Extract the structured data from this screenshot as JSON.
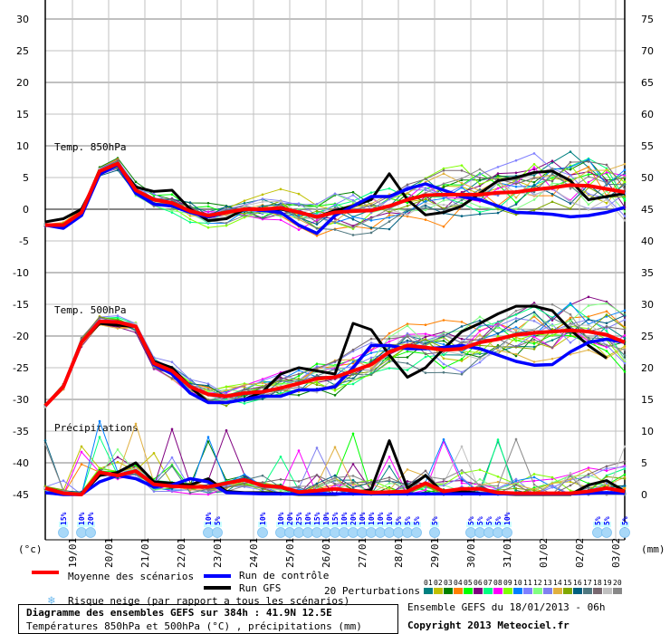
{
  "chart_data": {
    "type": "line",
    "title": "Diagramme des ensembles GEFS sur 384h : 41.9N 12.5E",
    "subtitle": "Températures 850hPa et 500hPa (°C) , précipitations (mm)",
    "run_info": "Ensemble GEFS du 18/01/2013 - 06h",
    "copyright": "Copyright 2013 Meteociel.fr",
    "ylabel_left": "(°c)",
    "ylabel_right": "(mm)",
    "ylim_left": [
      -45,
      30
    ],
    "ylim_right": [
      0,
      75
    ],
    "left_ticks": [
      "30",
      "25",
      "20",
      "15",
      "10",
      "5",
      "0",
      "-5",
      "-10",
      "-15",
      "-20",
      "-25",
      "-30",
      "-35",
      "-40",
      "-45"
    ],
    "right_ticks": [
      "75",
      "70",
      "65",
      "60",
      "55",
      "50",
      "45",
      "40",
      "35",
      "30",
      "25",
      "20",
      "15",
      "10",
      "5",
      "0"
    ],
    "x_ticks": [
      "19/01",
      "20/01",
      "21/01",
      "22/01",
      "23/01",
      "24/01",
      "25/01",
      "26/01",
      "27/01",
      "28/01",
      "29/01",
      "30/01",
      "31/01",
      "01/02",
      "02/02",
      "03/02"
    ],
    "grid": true,
    "panel_labels": {
      "t850": "Temp. 850hPa",
      "t500": "Temp. 500hPa",
      "precip": "Précipitations"
    },
    "times": [
      "18/01 06h",
      "18/01 18h",
      "19/01 06h",
      "19/01 18h",
      "20/01 06h",
      "20/01 18h",
      "21/01 06h",
      "21/01 18h",
      "22/01 06h",
      "22/01 18h",
      "23/01 06h",
      "23/01 18h",
      "24/01 06h",
      "24/01 18h",
      "25/01 06h",
      "25/01 18h",
      "26/01 06h",
      "26/01 18h",
      "27/01 06h",
      "27/01 18h",
      "28/01 06h",
      "28/01 18h",
      "29/01 06h",
      "29/01 18h",
      "30/01 06h",
      "30/01 18h",
      "31/01 06h",
      "31/01 18h",
      "01/02 06h",
      "01/02 18h",
      "02/02 06h",
      "02/02 18h",
      "03/02 06h"
    ],
    "series": {
      "t850": {
        "mean": [
          -2.5,
          -2.5,
          -0.5,
          6,
          7.2,
          3,
          1.5,
          1,
          -0.3,
          -1,
          -0.5,
          0,
          0,
          0.2,
          -0.5,
          -1.2,
          -0.5,
          -0.3,
          -0.2,
          0.5,
          1.5,
          2.2,
          2.3,
          2.3,
          2.3,
          2.6,
          2.7,
          3.1,
          3.4,
          3.8,
          3.7,
          3.2,
          2.7
        ],
        "control": [
          -2.5,
          -3,
          -1,
          5.5,
          7,
          2.5,
          0.8,
          0.5,
          -0.5,
          -1.2,
          -0.5,
          0,
          -0.2,
          -0.5,
          -2.5,
          -3.8,
          -1,
          0.5,
          2,
          2,
          3.2,
          4,
          3,
          2,
          1.5,
          0.5,
          -0.5,
          -0.6,
          -0.8,
          -1.2,
          -1,
          -0.5,
          0.3
        ],
        "gfs": [
          -2,
          -1.5,
          0,
          5.5,
          7,
          3.5,
          2.8,
          3,
          0,
          -1.8,
          -1.5,
          0,
          0,
          0,
          -0.5,
          -1.2,
          -0.2,
          0.5,
          1.5,
          5.6,
          1.5,
          -0.9,
          -0.5,
          0.5,
          2.5,
          4.5,
          5,
          5.8,
          6,
          4.5,
          1.5,
          2,
          2.5
        ]
      },
      "t500": {
        "mean": [
          -31,
          -28,
          -21,
          -17.7,
          -17.8,
          -18.5,
          -24.3,
          -25.5,
          -28,
          -29.2,
          -29.5,
          -29,
          -28.8,
          -28.2,
          -27.5,
          -26.7,
          -26.5,
          -25.5,
          -24.5,
          -22.5,
          -21.5,
          -21.8,
          -22.2,
          -22,
          -21,
          -20.5,
          -19.8,
          -19.5,
          -19.3,
          -19.1,
          -19.3,
          -19.8,
          -21
        ],
        "control": [
          -31,
          -28,
          -21,
          -17.7,
          -17.8,
          -18.5,
          -24.5,
          -26,
          -29,
          -30.5,
          -30.5,
          -30,
          -29.5,
          -29.5,
          -28.5,
          -28.5,
          -28,
          -25,
          -21.5,
          -21.5,
          -22,
          -22,
          -21.8,
          -21.5,
          -22,
          -23,
          -24,
          -24.6,
          -24.5,
          -22.5,
          -21,
          -20.5,
          -21
        ],
        "gfs": [
          -31,
          -28,
          -21,
          -18,
          -18.3,
          -18.5,
          -24,
          -25,
          -28,
          -30.5,
          -30.5,
          -30,
          -28.8,
          -26,
          -25,
          -25.5,
          -26,
          -18,
          -19,
          -23,
          -26.5,
          -25,
          -22,
          -19.3,
          -18,
          -16.5,
          -15.3,
          -15.3,
          -16,
          -19,
          -21.5,
          -23.5,
          null
        ]
      },
      "precip": {
        "mean": [
          1,
          0.2,
          0,
          3.5,
          3,
          3.7,
          1.6,
          1.3,
          1.2,
          1.2,
          1.8,
          2.3,
          1.4,
          1.2,
          0.4,
          0.6,
          0.9,
          0.6,
          0.3,
          0.4,
          0.5,
          1.8,
          0.5,
          0.9,
          0.9,
          0.3,
          0.2,
          0.2,
          0.2,
          0.2,
          0.5,
          1,
          0.5
        ],
        "control": [
          0.3,
          0,
          0,
          2,
          3,
          2.5,
          1.2,
          1.5,
          2.5,
          2,
          0.3,
          0.2,
          0.1,
          0.1,
          0.1,
          0.1,
          0.1,
          0.1,
          0.1,
          0.1,
          0.1,
          0.1,
          0.1,
          0.1,
          0.1,
          0.1,
          0.1,
          0.1,
          0.1,
          0.1,
          0.2,
          0.3,
          0.2
        ],
        "gfs": [
          0.3,
          0,
          0,
          3,
          3.5,
          5,
          2,
          1.8,
          1.5,
          2.5,
          0.5,
          0.3,
          0.3,
          0.2,
          0,
          0,
          0,
          0.2,
          0.8,
          8.5,
          1,
          3,
          0.2,
          0.5,
          0.2,
          0.1,
          0,
          0,
          0,
          0,
          1.5,
          2.2,
          0.5
        ]
      }
    },
    "snow_risk": [
      {
        "t": "18/01 18h",
        "pct": "15%"
      },
      {
        "t": "19/01 06h",
        "pct": "10%"
      },
      {
        "t": "19/01 12h",
        "pct": "20%"
      },
      {
        "t": "22/01 18h",
        "pct": "10%"
      },
      {
        "t": "23/01 00h",
        "pct": "5%"
      },
      {
        "t": "24/01 06h",
        "pct": "10%"
      },
      {
        "t": "24/01 18h",
        "pct": "10%"
      },
      {
        "t": "25/01 00h",
        "pct": "20%"
      },
      {
        "t": "25/01 06h",
        "pct": "25%"
      },
      {
        "t": "25/01 12h",
        "pct": "10%"
      },
      {
        "t": "25/01 18h",
        "pct": "15%"
      },
      {
        "t": "26/01 00h",
        "pct": "10%"
      },
      {
        "t": "26/01 06h",
        "pct": "15%"
      },
      {
        "t": "26/01 12h",
        "pct": "10%"
      },
      {
        "t": "26/01 18h",
        "pct": "20%"
      },
      {
        "t": "27/01 00h",
        "pct": "10%"
      },
      {
        "t": "27/01 06h",
        "pct": "10%"
      },
      {
        "t": "27/01 12h",
        "pct": "10%"
      },
      {
        "t": "27/01 18h",
        "pct": "10%"
      },
      {
        "t": "28/01 00h",
        "pct": "5%"
      },
      {
        "t": "28/01 06h",
        "pct": "5%"
      },
      {
        "t": "28/01 12h",
        "pct": "5%"
      },
      {
        "t": "29/01 00h",
        "pct": "5%"
      },
      {
        "t": "30/01 00h",
        "pct": "5%"
      },
      {
        "t": "30/01 06h",
        "pct": "5%"
      },
      {
        "t": "30/01 12h",
        "pct": "5%"
      },
      {
        "t": "30/01 18h",
        "pct": "5%"
      },
      {
        "t": "31/01 00h",
        "pct": "10%"
      },
      {
        "t": "02/02 12h",
        "pct": "5%"
      },
      {
        "t": "02/02 18h",
        "pct": "5%"
      },
      {
        "t": "03/02 06h",
        "pct": "5%"
      }
    ],
    "colors": {
      "mean": "#ff0000",
      "control": "#0000ff",
      "gfs": "#000000",
      "snow": "#a8d8f8",
      "snow_text": "#0000ff"
    }
  },
  "legend": {
    "mean": "Moyenne des scénarios",
    "control": "Run de contrôle",
    "gfs": "Run GFS",
    "snow": "Risque neige (par rapport a tous les scénarios)",
    "perturbations": "20 Perturbations",
    "members": [
      {
        "num": "01",
        "color": "#008080"
      },
      {
        "num": "02",
        "color": "#c0c000"
      },
      {
        "num": "03",
        "color": "#008000"
      },
      {
        "num": "04",
        "color": "#ff8000"
      },
      {
        "num": "05",
        "color": "#00ff00"
      },
      {
        "num": "06",
        "color": "#800080"
      },
      {
        "num": "07",
        "color": "#00ff80"
      },
      {
        "num": "08",
        "color": "#ff00ff"
      },
      {
        "num": "09",
        "color": "#80ff00"
      },
      {
        "num": "10",
        "color": "#0080ff"
      },
      {
        "num": "11",
        "color": "#8080ff"
      },
      {
        "num": "12",
        "color": "#80ff80"
      },
      {
        "num": "13",
        "color": "#8080f0"
      },
      {
        "num": "14",
        "color": "#e0b040"
      },
      {
        "num": "15",
        "color": "#80a800"
      },
      {
        "num": "16",
        "color": "#006080"
      },
      {
        "num": "17",
        "color": "#507880"
      },
      {
        "num": "18",
        "color": "#786870"
      },
      {
        "num": "19",
        "color": "#c0c0c0"
      },
      {
        "num": "20",
        "color": "#888888"
      }
    ]
  }
}
